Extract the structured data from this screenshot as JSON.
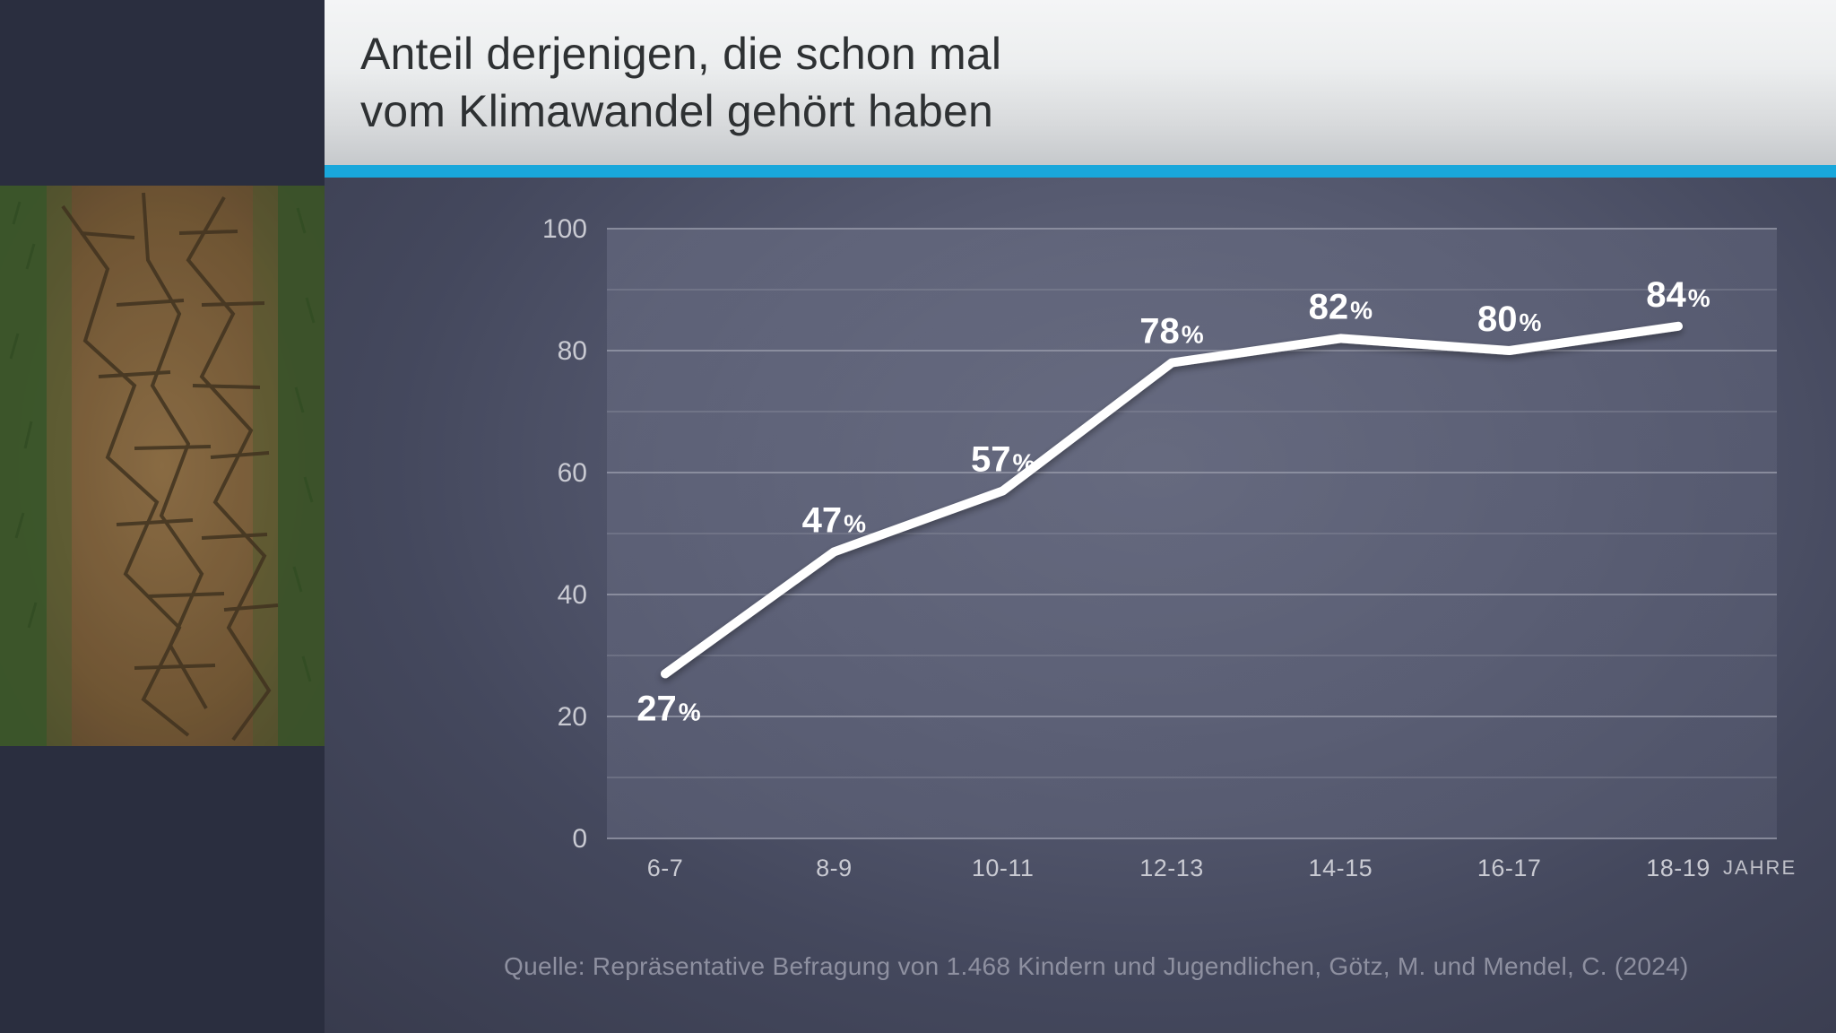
{
  "title": {
    "line1": "Anteil derjenigen, die schon mal",
    "line2": "vom Klimawandel gehört haben"
  },
  "accent_color": "#19a7db",
  "chart": {
    "type": "line",
    "categories": [
      "6-7",
      "8-9",
      "10-11",
      "12-13",
      "14-15",
      "16-17",
      "18-19"
    ],
    "values": [
      27,
      47,
      57,
      78,
      82,
      80,
      84
    ],
    "value_suffix": "%",
    "ylim": [
      0,
      100
    ],
    "yticks": [
      0,
      20,
      40,
      60,
      80,
      100
    ],
    "ytick_step": 20,
    "secondary_lines": [
      10,
      30,
      50,
      70,
      90
    ],
    "xaxis_title": "JAHRE",
    "line_color": "#ffffff",
    "line_width": 10,
    "plot_bg_from": "#6b6f85",
    "plot_bg_to": "#585c72",
    "grid_major_color": "#9598a8",
    "grid_minor_color": "#8a8d9d",
    "tick_label_color": "#c9cad2",
    "value_label_color": "#ffffff",
    "value_fontsize_num": 40,
    "value_fontsize_pct": 28,
    "tick_fontsize_y": 30,
    "tick_fontsize_x": 27,
    "label_positions": [
      "below",
      "above",
      "above",
      "above",
      "above",
      "above",
      "above"
    ]
  },
  "source_text": "Quelle: Repräsentative Befragung von 1.468 Kindern und Jugendlichen, Götz, M. und Mendel, C. (2024)",
  "colors": {
    "page_bg": "#2a2e3f",
    "title_text": "#2e3133",
    "source_text": "#8e90a0"
  }
}
